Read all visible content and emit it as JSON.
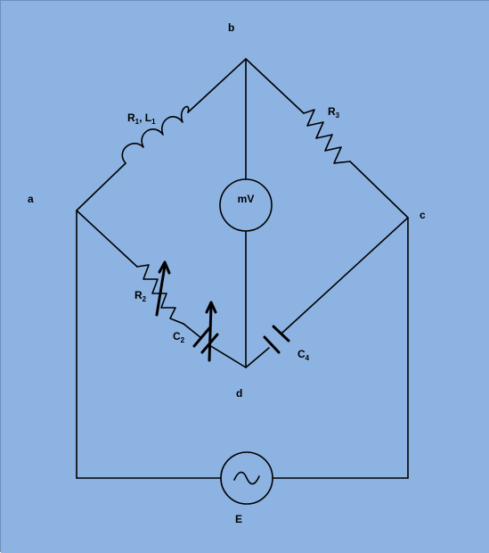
{
  "background_color": "#8db3e2",
  "line_color": "#000000",
  "nodes": {
    "a": "a",
    "b": "b",
    "c": "c",
    "d": "d"
  },
  "components": {
    "r1l1": {
      "main": "R",
      "sub1": "1",
      "sep": ", L",
      "sub2": "1"
    },
    "r3": {
      "main": "R",
      "sub": "3"
    },
    "r2": {
      "main": "R",
      "sub": "2"
    },
    "c2": {
      "main": "C",
      "sub": "2"
    },
    "c4": {
      "main": "C",
      "sub": "4"
    },
    "meter": "mV",
    "source": "E"
  }
}
